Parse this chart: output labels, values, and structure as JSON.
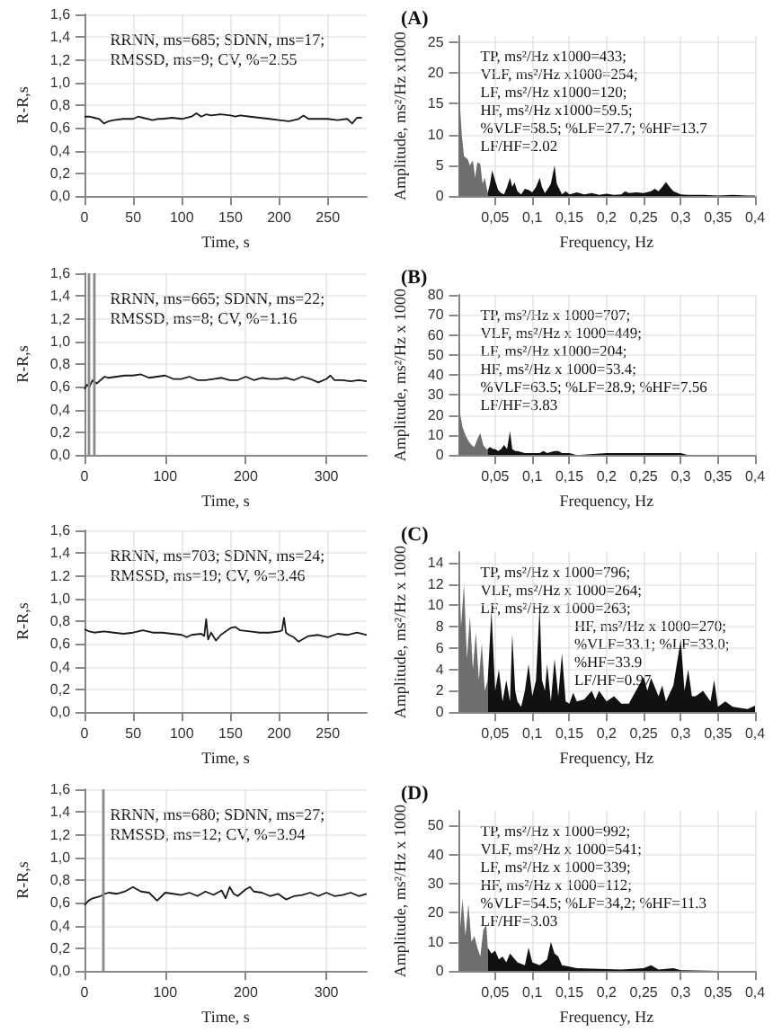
{
  "chart_data": [
    {
      "type": "line",
      "xlabel": "Time, s",
      "ylabel": "R-R,s",
      "marker": "none",
      "line_style": "solid",
      "grid": true,
      "xlim": [
        0,
        290
      ],
      "xticks": [
        0,
        50,
        100,
        150,
        200,
        250
      ],
      "ylim": [
        0,
        1.6
      ],
      "yticks": [
        {
          "value": 0,
          "label": "0,0"
        },
        {
          "value": 0.2,
          "label": "0,2"
        },
        {
          "value": 0.4,
          "label": "0,4"
        },
        {
          "value": 0.6,
          "label": "0,6"
        },
        {
          "value": 0.8,
          "label": "0,8"
        },
        {
          "value": 1.0,
          "label": "1,0"
        },
        {
          "value": 1.2,
          "label": "1,2"
        },
        {
          "value": 1.4,
          "label": "1,4"
        },
        {
          "value": 1.6,
          "label": "1,6"
        }
      ],
      "annotations": [
        "RRNN, ms=685; SDNN, ms=17;",
        "RMSSD, ms=9; CV, %=2.55"
      ],
      "series": [
        {
          "color": "#1a1a1a",
          "x": [
            0,
            5,
            10,
            15,
            20,
            25,
            30,
            40,
            50,
            55,
            60,
            70,
            75,
            80,
            90,
            100,
            110,
            115,
            120,
            125,
            130,
            140,
            150,
            155,
            160,
            170,
            180,
            190,
            200,
            210,
            220,
            225,
            230,
            240,
            250,
            260,
            270,
            275,
            280,
            285
          ],
          "values": [
            0.7,
            0.7,
            0.69,
            0.68,
            0.64,
            0.66,
            0.67,
            0.68,
            0.68,
            0.7,
            0.69,
            0.67,
            0.68,
            0.68,
            0.69,
            0.68,
            0.7,
            0.73,
            0.7,
            0.72,
            0.71,
            0.72,
            0.71,
            0.7,
            0.71,
            0.7,
            0.69,
            0.68,
            0.67,
            0.66,
            0.68,
            0.71,
            0.68,
            0.68,
            0.68,
            0.67,
            0.68,
            0.64,
            0.69,
            0.69
          ]
        }
      ]
    },
    {
      "type": "area",
      "title": "(A)",
      "xlabel": "Frequency, Hz",
      "ylabel": "Amplitude, ms²/Hz x1000",
      "marker": "none",
      "line_style": "solid",
      "grid": true,
      "xlim": [
        0,
        0.4
      ],
      "xticks": [
        {
          "value": 0.05,
          "label": "0,05"
        },
        {
          "value": 0.1,
          "label": "0,1"
        },
        {
          "value": 0.15,
          "label": "0,15"
        },
        {
          "value": 0.2,
          "label": "0,2"
        },
        {
          "value": 0.25,
          "label": "0,25"
        },
        {
          "value": 0.3,
          "label": "0,3"
        },
        {
          "value": 0.35,
          "label": "0,35"
        },
        {
          "value": 0.4,
          "label": "0,4"
        }
      ],
      "ylim": [
        0,
        26
      ],
      "yticks": [
        0,
        5,
        10,
        15,
        20,
        25
      ],
      "annotations": [
        "TP, ms²/Hz x1000=433;",
        "VLF, ms²/Hz x1000=254;",
        "LF, ms²/Hz x1000=120;",
        "HF, ms²/Hz x1000=59.5;",
        "%VLF=58.5; %LF=27.7; %HF=13.7",
        "LF/HF=2.02"
      ],
      "series": [
        {
          "color": "#6e6e6e",
          "x": [
            0.001,
            0.003,
            0.005,
            0.008,
            0.01,
            0.013,
            0.016,
            0.02,
            0.023,
            0.026,
            0.03,
            0.033,
            0.036,
            0.04
          ],
          "values": [
            25,
            14,
            10,
            6.5,
            6.3,
            6,
            5,
            5.8,
            3,
            5.5,
            5.2,
            2,
            3,
            0.5
          ]
        },
        {
          "color": "#111111",
          "x": [
            0.04,
            0.043,
            0.046,
            0.05,
            0.054,
            0.058,
            0.062,
            0.066,
            0.07,
            0.073,
            0.076,
            0.08,
            0.085,
            0.09,
            0.095,
            0.1,
            0.105,
            0.11,
            0.113,
            0.117,
            0.12,
            0.125,
            0.13,
            0.133,
            0.137,
            0.14,
            0.145,
            0.15,
            0.16,
            0.17,
            0.18,
            0.19,
            0.2,
            0.21,
            0.22,
            0.225,
            0.23,
            0.24,
            0.25,
            0.26,
            0.265,
            0.27,
            0.275,
            0.28,
            0.285,
            0.29,
            0.3,
            0.31,
            0.33,
            0.35,
            0.37,
            0.39,
            0.4
          ],
          "values": [
            0.5,
            2,
            4.2,
            2.5,
            1,
            0.5,
            0.3,
            1.5,
            3,
            1.5,
            2.2,
            0.8,
            0.3,
            1.2,
            1,
            0.6,
            1.5,
            3,
            1.5,
            0.5,
            1,
            2,
            5,
            2,
            1,
            0.3,
            0.8,
            0.3,
            0.6,
            0.3,
            0.5,
            0.2,
            0.4,
            0.2,
            0.3,
            0.8,
            0.5,
            0.6,
            0.5,
            0.8,
            1.2,
            0.8,
            1.5,
            2.3,
            1.5,
            0.8,
            0.3,
            0.2,
            0.2,
            0.1,
            0.2,
            0.1,
            0.1
          ]
        }
      ]
    },
    {
      "type": "line",
      "xlabel": "Time, s",
      "ylabel": "R-R,s",
      "marker": "none",
      "line_style": "solid",
      "grid": true,
      "xlim": [
        0,
        350
      ],
      "xticks": [
        0,
        100,
        200,
        300
      ],
      "ylim": [
        0,
        1.6
      ],
      "yticks": [
        {
          "value": 0,
          "label": "0,0"
        },
        {
          "value": 0.2,
          "label": "0,2"
        },
        {
          "value": 0.4,
          "label": "0,4"
        },
        {
          "value": 0.6,
          "label": "0,6"
        },
        {
          "value": 0.8,
          "label": "0,8"
        },
        {
          "value": 1.0,
          "label": "1,0"
        },
        {
          "value": 1.2,
          "label": "1,2"
        },
        {
          "value": 1.4,
          "label": "1,4"
        },
        {
          "value": 1.6,
          "label": "1,6"
        }
      ],
      "annotations": [
        "RRNN, ms=665; SDNN, ms=22;",
        "RMSSD, ms=8; CV, %=1.16"
      ],
      "ref_lines": [
        {
          "axis": "x",
          "value": 5,
          "color": "#8a8a8a"
        },
        {
          "axis": "x",
          "value": 12,
          "color": "#8a8a8a"
        }
      ],
      "series": [
        {
          "color": "#1a1a1a",
          "x": [
            0,
            3,
            6,
            10,
            15,
            20,
            25,
            30,
            40,
            50,
            60,
            70,
            80,
            90,
            100,
            110,
            120,
            130,
            140,
            150,
            160,
            170,
            180,
            190,
            200,
            210,
            220,
            230,
            240,
            250,
            260,
            270,
            280,
            290,
            300,
            305,
            310,
            320,
            330,
            340,
            350
          ],
          "values": [
            0.58,
            0.62,
            0.6,
            0.66,
            0.63,
            0.66,
            0.69,
            0.68,
            0.69,
            0.7,
            0.7,
            0.71,
            0.68,
            0.69,
            0.7,
            0.67,
            0.67,
            0.69,
            0.66,
            0.66,
            0.67,
            0.68,
            0.66,
            0.66,
            0.69,
            0.66,
            0.68,
            0.67,
            0.67,
            0.68,
            0.66,
            0.69,
            0.67,
            0.64,
            0.67,
            0.7,
            0.66,
            0.66,
            0.65,
            0.66,
            0.65
          ]
        }
      ]
    },
    {
      "type": "area",
      "title": "(B)",
      "xlabel": "Frequency, Hz",
      "ylabel": "Amplitude, ms²/Hz x 1000",
      "marker": "none",
      "line_style": "solid",
      "grid": true,
      "xlim": [
        0,
        0.4
      ],
      "xticks": [
        {
          "value": 0.05,
          "label": "0,05"
        },
        {
          "value": 0.1,
          "label": "0,1"
        },
        {
          "value": 0.15,
          "label": "0,15"
        },
        {
          "value": 0.2,
          "label": "0,2"
        },
        {
          "value": 0.25,
          "label": "0,25"
        },
        {
          "value": 0.3,
          "label": "0,3"
        },
        {
          "value": 0.35,
          "label": "0,35"
        },
        {
          "value": 0.4,
          "label": "0,4"
        }
      ],
      "ylim": [
        0,
        80
      ],
      "yticks": [
        0,
        10,
        20,
        30,
        40,
        50,
        60,
        70,
        80
      ],
      "annotations": [
        "TP, ms²/Hz x 1000=707;",
        "VLF, ms²/Hz x 1000=449;",
        "LF, ms²/Hz x1000=204;",
        "HF, ms²/Hz x 1000=53.4;",
        "%VLF=63.5; %LF=28.9; %HF=7.56",
        "LF/HF=3.83"
      ],
      "series": [
        {
          "color": "#6e6e6e",
          "x": [
            0.001,
            0.003,
            0.006,
            0.01,
            0.014,
            0.018,
            0.022,
            0.026,
            0.03,
            0.034,
            0.038,
            0.04
          ],
          "values": [
            78,
            20,
            14,
            10,
            7,
            5,
            4,
            8,
            11,
            5,
            3,
            3
          ]
        },
        {
          "color": "#111111",
          "x": [
            0.04,
            0.043,
            0.047,
            0.05,
            0.054,
            0.058,
            0.062,
            0.066,
            0.07,
            0.073,
            0.077,
            0.08,
            0.09,
            0.1,
            0.11,
            0.115,
            0.12,
            0.13,
            0.135,
            0.14,
            0.15,
            0.16,
            0.2,
            0.25,
            0.3,
            0.31,
            0.35,
            0.4
          ],
          "values": [
            3,
            4,
            3,
            3,
            2,
            3,
            5,
            3,
            12,
            3,
            2,
            2,
            1,
            1,
            1,
            2,
            1,
            2,
            2,
            1,
            1,
            0,
            1,
            1,
            1,
            0,
            0,
            0
          ]
        }
      ]
    },
    {
      "type": "line",
      "xlabel": "Time, s",
      "ylabel": "R-R,s",
      "marker": "none",
      "line_style": "solid",
      "grid": true,
      "xlim": [
        0,
        290
      ],
      "xticks": [
        0,
        50,
        100,
        150,
        200,
        250
      ],
      "ylim": [
        0,
        1.6
      ],
      "yticks": [
        {
          "value": 0,
          "label": "0,0"
        },
        {
          "value": 0.2,
          "label": "0,2"
        },
        {
          "value": 0.4,
          "label": "0,4"
        },
        {
          "value": 0.6,
          "label": "0,6"
        },
        {
          "value": 0.8,
          "label": "0,8"
        },
        {
          "value": 1.0,
          "label": "1,0"
        },
        {
          "value": 1.2,
          "label": "1.2"
        },
        {
          "value": 1.4,
          "label": "1,4"
        },
        {
          "value": 1.6,
          "label": "1,6"
        }
      ],
      "annotations": [
        "RRNN, ms=703; SDNN, ms=24;",
        "RMSSD, ms=19; CV, %=3.46"
      ],
      "series": [
        {
          "color": "#1a1a1a",
          "x": [
            0,
            5,
            10,
            20,
            30,
            40,
            50,
            60,
            70,
            80,
            90,
            100,
            105,
            110,
            120,
            123,
            125,
            127,
            130,
            135,
            140,
            150,
            155,
            160,
            170,
            180,
            190,
            200,
            203,
            205,
            207,
            210,
            215,
            220,
            230,
            240,
            250,
            260,
            270,
            280,
            290
          ],
          "values": [
            0.73,
            0.71,
            0.7,
            0.71,
            0.7,
            0.69,
            0.7,
            0.72,
            0.7,
            0.7,
            0.69,
            0.68,
            0.66,
            0.68,
            0.69,
            0.67,
            0.82,
            0.64,
            0.7,
            0.63,
            0.68,
            0.74,
            0.75,
            0.72,
            0.71,
            0.7,
            0.7,
            0.71,
            0.72,
            0.83,
            0.7,
            0.68,
            0.66,
            0.62,
            0.67,
            0.68,
            0.66,
            0.69,
            0.68,
            0.7,
            0.68
          ]
        }
      ]
    },
    {
      "type": "area",
      "title": "(C)",
      "xlabel": "Frequency, Hz",
      "ylabel": "Amplitude, ms²/Hz x 1000",
      "marker": "none",
      "line_style": "solid",
      "grid": true,
      "xlim": [
        0,
        0.4
      ],
      "xticks": [
        {
          "value": 0.05,
          "label": "0,05"
        },
        {
          "value": 0.1,
          "label": "0,1"
        },
        {
          "value": 0.15,
          "label": "0,15"
        },
        {
          "value": 0.2,
          "label": "0,2"
        },
        {
          "value": 0.25,
          "label": "0,25"
        },
        {
          "value": 0.3,
          "label": "0,3"
        },
        {
          "value": 0.35,
          "label": "0,35"
        },
        {
          "value": 0.4,
          "label": "0,4"
        }
      ],
      "ylim": [
        0,
        15
      ],
      "yticks": [
        0,
        2,
        4,
        6,
        8,
        10,
        12,
        14
      ],
      "annotations": [
        "TP, ms²/Hz x 1000=796;",
        "VLF, ms²/Hz x 1000=264;",
        "LF, ms²/Hz x 1000=263;",
        "HF, ms²/Hz x 1000=270;",
        "%VLF=33.1; %LF=33.0;",
        "%HF=33.9",
        "LF/HF=0.97"
      ],
      "series": [
        {
          "color": "#6e6e6e",
          "x": [
            0.001,
            0.004,
            0.008,
            0.012,
            0.016,
            0.02,
            0.024,
            0.028,
            0.032,
            0.036,
            0.04
          ],
          "values": [
            15,
            8,
            12,
            5,
            9,
            4,
            7.5,
            3,
            6.5,
            2,
            3
          ]
        },
        {
          "color": "#111111",
          "x": [
            0.04,
            0.045,
            0.05,
            0.055,
            0.06,
            0.065,
            0.07,
            0.073,
            0.077,
            0.08,
            0.085,
            0.09,
            0.095,
            0.1,
            0.105,
            0.11,
            0.113,
            0.117,
            0.12,
            0.125,
            0.13,
            0.135,
            0.14,
            0.145,
            0.15,
            0.155,
            0.16,
            0.17,
            0.18,
            0.185,
            0.19,
            0.2,
            0.21,
            0.22,
            0.23,
            0.25,
            0.255,
            0.26,
            0.27,
            0.275,
            0.28,
            0.29,
            0.3,
            0.305,
            0.31,
            0.315,
            0.32,
            0.33,
            0.34,
            0.345,
            0.35,
            0.36,
            0.37,
            0.38,
            0.39,
            0.4
          ],
          "values": [
            3,
            9.5,
            2,
            4,
            1,
            3,
            1,
            7.3,
            2,
            1,
            0.5,
            2,
            4.5,
            1.5,
            3,
            10,
            3,
            2,
            4.5,
            1,
            5,
            1.5,
            5.5,
            1,
            0.8,
            1.8,
            1,
            1.2,
            2,
            1.2,
            2,
            1,
            1.5,
            0.8,
            0.8,
            3.3,
            2,
            3.2,
            1.5,
            2.5,
            1,
            2.5,
            6.8,
            2,
            4,
            1.5,
            1.5,
            2,
            1,
            3,
            0.5,
            1,
            0.5,
            0.4,
            0.3,
            0.6
          ]
        }
      ]
    },
    {
      "type": "line",
      "xlabel": "Time, s",
      "ylabel": "R-R,s",
      "marker": "none",
      "line_style": "solid",
      "grid": true,
      "xlim": [
        0,
        350
      ],
      "xticks": [
        0,
        100,
        200,
        300
      ],
      "ylim": [
        0,
        1.6
      ],
      "yticks": [
        {
          "value": 0,
          "label": "0,0"
        },
        {
          "value": 0.2,
          "label": "0,2"
        },
        {
          "value": 0.4,
          "label": "0,4"
        },
        {
          "value": 0.6,
          "label": "0,6"
        },
        {
          "value": 0.8,
          "label": "0,8"
        },
        {
          "value": 1.0,
          "label": "1,0"
        },
        {
          "value": 1.2,
          "label": "1,2"
        },
        {
          "value": 1.4,
          "label": "1,4"
        },
        {
          "value": 1.6,
          "label": "1,6"
        }
      ],
      "annotations": [
        "RRNN, ms=680; SDNN, ms=27;",
        "RMSSD, ms=12; CV, %=3.94"
      ],
      "ref_lines": [
        {
          "axis": "x",
          "value": 22,
          "color": "#8a8a8a"
        }
      ],
      "series": [
        {
          "color": "#1a1a1a",
          "x": [
            0,
            5,
            10,
            15,
            20,
            25,
            30,
            40,
            50,
            60,
            70,
            80,
            90,
            100,
            110,
            120,
            130,
            140,
            150,
            160,
            170,
            175,
            180,
            185,
            190,
            200,
            205,
            210,
            220,
            230,
            240,
            250,
            260,
            270,
            280,
            290,
            300,
            310,
            320,
            330,
            340,
            350
          ],
          "values": [
            0.58,
            0.62,
            0.64,
            0.65,
            0.66,
            0.68,
            0.69,
            0.68,
            0.7,
            0.74,
            0.7,
            0.69,
            0.62,
            0.69,
            0.68,
            0.67,
            0.69,
            0.66,
            0.7,
            0.67,
            0.71,
            0.64,
            0.74,
            0.68,
            0.66,
            0.72,
            0.74,
            0.7,
            0.69,
            0.66,
            0.68,
            0.63,
            0.66,
            0.67,
            0.69,
            0.66,
            0.69,
            0.66,
            0.67,
            0.69,
            0.66,
            0.68
          ]
        }
      ]
    },
    {
      "type": "area",
      "title": "(D)",
      "xlabel": "Frequency, Hz",
      "ylabel": "Amplitude, ms²/Hz x 1000",
      "marker": "none",
      "line_style": "solid",
      "grid": true,
      "xlim": [
        0,
        0.4
      ],
      "xticks": [
        {
          "value": 0.05,
          "label": "0,05"
        },
        {
          "value": 0.1,
          "label": "0,1"
        },
        {
          "value": 0.15,
          "label": "0,15"
        },
        {
          "value": 0.2,
          "label": "0,2"
        },
        {
          "value": 0.25,
          "label": "0,25"
        },
        {
          "value": 0.3,
          "label": "0,3"
        },
        {
          "value": 0.35,
          "label": "0,35"
        },
        {
          "value": 0.4,
          "label": "0,4"
        }
      ],
      "ylim": [
        0,
        55
      ],
      "yticks": [
        0,
        10,
        20,
        30,
        40,
        50
      ],
      "annotations": [
        "TP, ms²/Hz x 1000=992;",
        "VLF, ms²/Hz x 1000=541;",
        "LF, ms²/Hz x 1000=339;",
        "HF, ms²/Hz x 1000=112;",
        "%VLF=54.5; %LF=34,2; %HF=11.3",
        "LF/HF=3.03"
      ],
      "series": [
        {
          "color": "#6e6e6e",
          "x": [
            0.001,
            0.003,
            0.006,
            0.01,
            0.014,
            0.018,
            0.022,
            0.026,
            0.03,
            0.034,
            0.038,
            0.04
          ],
          "values": [
            55,
            15,
            25,
            12,
            23,
            10,
            12,
            8,
            5,
            14,
            16,
            8
          ]
        },
        {
          "color": "#111111",
          "x": [
            0.04,
            0.045,
            0.05,
            0.055,
            0.06,
            0.065,
            0.07,
            0.08,
            0.09,
            0.095,
            0.1,
            0.11,
            0.12,
            0.125,
            0.13,
            0.135,
            0.14,
            0.15,
            0.16,
            0.18,
            0.2,
            0.22,
            0.25,
            0.26,
            0.27,
            0.29,
            0.3,
            0.35,
            0.4
          ],
          "values": [
            8,
            6,
            7,
            4,
            5,
            3,
            6,
            3,
            2,
            8,
            3,
            2,
            4,
            10,
            6,
            5,
            2,
            1.5,
            1,
            0.8,
            0.7,
            0.5,
            1,
            2,
            0.5,
            1,
            0.3,
            0.1,
            0.1
          ]
        }
      ]
    }
  ]
}
